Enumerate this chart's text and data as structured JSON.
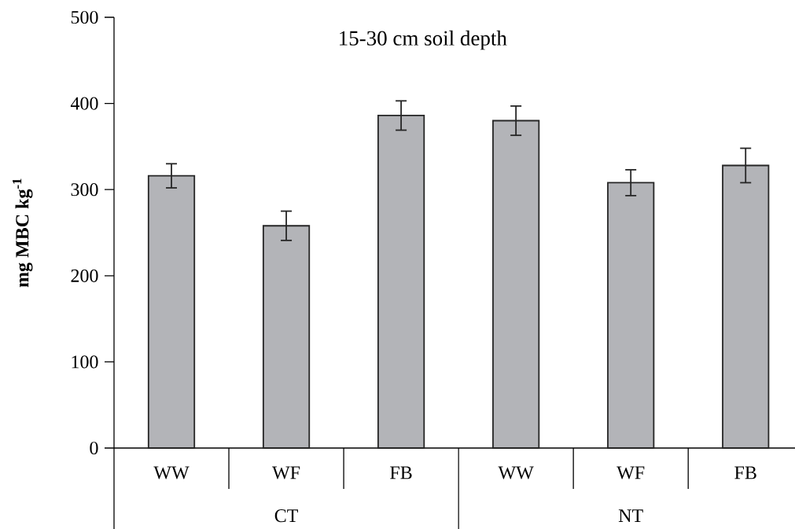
{
  "chart_data": {
    "type": "bar",
    "title": "15-30 cm soil depth",
    "ylabel": "mg MBC kg$^{-1}$",
    "categories": [
      "WW",
      "WF",
      "FB",
      "WW",
      "WF",
      "FB"
    ],
    "values": [
      316,
      258,
      386,
      380,
      308,
      328
    ],
    "errors": [
      14,
      17,
      17,
      17,
      15,
      20
    ],
    "color": "#b3b4b8",
    "ylim": [
      0,
      500
    ],
    "yticks": [
      0,
      100,
      200,
      300,
      400,
      500
    ],
    "annotations": [
      "CT",
      "NT"
    ]
  }
}
